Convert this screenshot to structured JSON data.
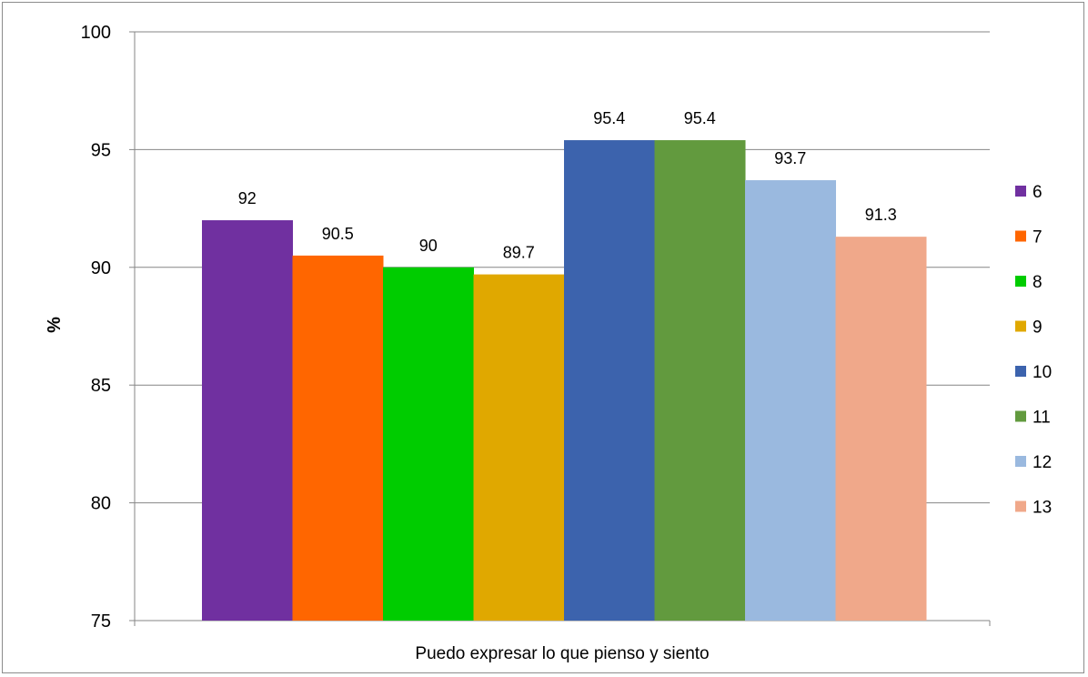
{
  "chart_data": {
    "type": "bar",
    "title": "",
    "xlabel": "",
    "ylabel": "%",
    "category": "Puedo expresar lo que pienso y siento",
    "ylim": [
      75,
      100
    ],
    "yticks": [
      75,
      80,
      85,
      90,
      95,
      100
    ],
    "grid": true,
    "legend_position": "right",
    "series": [
      {
        "name": "6",
        "value": 92,
        "label": "92",
        "color": "#7030a0"
      },
      {
        "name": "7",
        "value": 90.5,
        "label": "90.5",
        "color": "#ff6600"
      },
      {
        "name": "8",
        "value": 90,
        "label": "90",
        "color": "#00cc00"
      },
      {
        "name": "9",
        "value": 89.7,
        "label": "89.7",
        "color": "#e0a800"
      },
      {
        "name": "10",
        "value": 95.4,
        "label": "95.4",
        "color": "#3c63ad"
      },
      {
        "name": "11",
        "value": 95.4,
        "label": "95.4",
        "color": "#629a3e"
      },
      {
        "name": "12",
        "value": 93.7,
        "label": "93.7",
        "color": "#9ab9df"
      },
      {
        "name": "13",
        "value": 91.3,
        "label": "91.3",
        "color": "#f0a88a"
      }
    ]
  }
}
